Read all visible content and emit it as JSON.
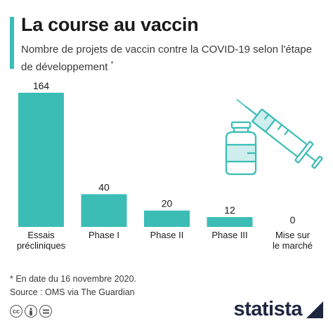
{
  "header": {
    "title": "La course au vaccin",
    "subtitle": "Nombre de projets de vaccin contre la COVID-19 selon l'étape de développement",
    "subtitle_marker": "*"
  },
  "footer": {
    "note": "* En date du 16 novembre 2020.",
    "source": "Source : OMS via The Guardian",
    "logo": "statista",
    "license_icons": [
      "cc-icon",
      "attribution-icon",
      "no-derivatives-icon"
    ]
  },
  "colors": {
    "accent": "#3bbdb6",
    "bar": "#3bbdb6",
    "logo": "#1e2640"
  },
  "icons": [
    "syringe-icon",
    "vial-icon"
  ],
  "chart_data": {
    "type": "bar",
    "title": "La course au vaccin",
    "xlabel": "",
    "ylabel": "",
    "categories": [
      [
        "Essais",
        "précliniques"
      ],
      [
        "Phase I"
      ],
      [
        "Phase II"
      ],
      [
        "Phase III"
      ],
      [
        "Mise sur",
        "le marché"
      ]
    ],
    "values": [
      164,
      40,
      20,
      12,
      0
    ],
    "ylim": [
      0,
      164
    ],
    "grid": false,
    "legend": "none"
  }
}
